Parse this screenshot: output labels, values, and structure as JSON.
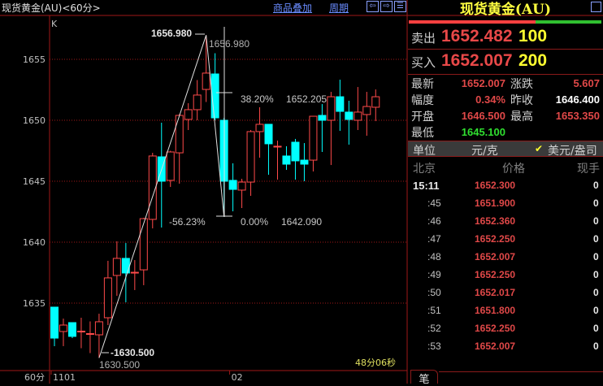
{
  "header": {
    "title": "现货黄金(AU)<60分>",
    "overlay_link": "商品叠加",
    "period_link": "周期",
    "buttons": [
      "left-arrow",
      "right-arrow",
      "layout"
    ]
  },
  "chart_data": {
    "type": "candlestick",
    "indicator_label": "K",
    "period_label": "60分",
    "y_ticks": [
      1655,
      1650,
      1645,
      1640,
      1635
    ],
    "ylim": [
      1628.9,
      1658.4
    ],
    "x_tick_labels": [
      {
        "label": "1101",
        "index": 0
      },
      {
        "label": "02",
        "index": 20
      }
    ],
    "timer": "48分06秒",
    "colors": {
      "up": "#ff4a4a",
      "down": "#00ffff",
      "grid": "#a01818"
    },
    "candles": [
      [
        1634.67,
        1634.67,
        1631.47,
        1632.13
      ],
      [
        1632.67,
        1633.73,
        1631.47,
        1633.2
      ],
      [
        1633.4,
        1633.4,
        1632.13,
        1632.27
      ],
      [
        1632.7,
        1633.8,
        1631.3,
        1632.7
      ],
      [
        1632.5,
        1633.5,
        1630.9,
        1632.5
      ],
      [
        1632.4,
        1634.13,
        1630.5,
        1633.47
      ],
      [
        1633.8,
        1638.47,
        1633.2,
        1637.07
      ],
      [
        1637.27,
        1640.07,
        1635.6,
        1638.67
      ],
      [
        1638.67,
        1639.93,
        1635.07,
        1637.47
      ],
      [
        1637.53,
        1638.53,
        1636.07,
        1637.53
      ],
      [
        1637.73,
        1642.0,
        1636.47,
        1641.93
      ],
      [
        1641.87,
        1647.33,
        1641.13,
        1647.07
      ],
      [
        1647.0,
        1649.8,
        1641.2,
        1645.0
      ],
      [
        1645.07,
        1647.5,
        1644.53,
        1647.4
      ],
      [
        1647.33,
        1650.5,
        1644.8,
        1650.4
      ],
      [
        1650.07,
        1651.4,
        1649.2,
        1650.87
      ],
      [
        1650.87,
        1653.3,
        1650.0,
        1652.07
      ],
      [
        1652.53,
        1656.98,
        1651.5,
        1653.87
      ],
      [
        1653.8,
        1655.5,
        1650.0,
        1650.2
      ],
      [
        1650.0,
        1650.2,
        1642.09,
        1645.0
      ],
      [
        1645.07,
        1646.47,
        1642.53,
        1644.33
      ],
      [
        1644.27,
        1645.2,
        1642.8,
        1644.93
      ],
      [
        1644.93,
        1649.2,
        1643.8,
        1649.07
      ],
      [
        1649.07,
        1651.07,
        1646.93,
        1649.67
      ],
      [
        1649.67,
        1649.67,
        1645.53,
        1648.07
      ],
      [
        1647.87,
        1648.33,
        1645.13,
        1647.87
      ],
      [
        1647.07,
        1647.87,
        1645.93,
        1646.4
      ],
      [
        1648.2,
        1648.47,
        1645.13,
        1646.67
      ],
      [
        1646.73,
        1648.13,
        1645.0,
        1646.4
      ],
      [
        1646.73,
        1650.33,
        1645.8,
        1650.33
      ],
      [
        1650.4,
        1651.33,
        1647.4,
        1650.0
      ],
      [
        1650.0,
        1652.33,
        1646.33,
        1651.93
      ],
      [
        1651.93,
        1653.33,
        1649.13,
        1650.73
      ],
      [
        1650.67,
        1651.6,
        1648.0,
        1650.07
      ],
      [
        1650.0,
        1652.73,
        1649.2,
        1650.67
      ],
      [
        1650.47,
        1652.33,
        1648.73,
        1651.13
      ],
      [
        1651.07,
        1652.53,
        1649.93,
        1651.93
      ]
    ],
    "candle_fields": [
      "open",
      "high",
      "low",
      "close"
    ],
    "annotations": {
      "high_marker": "1656.980",
      "high_value": "1656.980",
      "low_marker": "-1630.500",
      "low_value": "1630.500",
      "fib_382_label": "38.20%",
      "fib_382_value": "1652.205",
      "fib_neg_label": "-56.23%",
      "fib_0_label": "0.00%",
      "fib_0_value": "1642.090"
    }
  },
  "quote": {
    "title": "现货黄金(AU)",
    "buy_sell_ratio": 0.66,
    "sell_label": "卖出",
    "sell_price": "1652.482",
    "sell_vol": "100",
    "buy_label": "买入",
    "buy_price": "1652.007",
    "buy_vol": "200",
    "stats": [
      {
        "label": "最新",
        "value": "1652.007",
        "color": "#e04848"
      },
      {
        "label": "涨跌",
        "value": "5.607",
        "color": "#e04848"
      },
      {
        "label": "幅度",
        "value": "0.34%",
        "color": "#e04848"
      },
      {
        "label": "昨收",
        "value": "1646.400",
        "color": "#ffffff"
      },
      {
        "label": "开盘",
        "value": "1646.500",
        "color": "#e04848"
      },
      {
        "label": "最高",
        "value": "1653.350",
        "color": "#e04848"
      },
      {
        "label": "最低",
        "value": "1645.100",
        "color": "#30e030"
      }
    ],
    "unit_label": "单位",
    "unit_cny": "元/克",
    "unit_usd": "美元/盎司",
    "unit_usd_checked": true,
    "ticks_headers": [
      "北京",
      "价格",
      "现手"
    ],
    "ticks": [
      {
        "time": "15:11",
        "price": "1652.300",
        "vol": "0"
      },
      {
        "time": ":45",
        "price": "1651.900",
        "vol": "0"
      },
      {
        "time": ":46",
        "price": "1652.360",
        "vol": "0"
      },
      {
        "time": ":47",
        "price": "1652.250",
        "vol": "0"
      },
      {
        "time": ":48",
        "price": "1652.007",
        "vol": "0"
      },
      {
        "time": ":49",
        "price": "1652.250",
        "vol": "0"
      },
      {
        "time": ":50",
        "price": "1652.017",
        "vol": "0"
      },
      {
        "time": ":51",
        "price": "1651.800",
        "vol": "0"
      },
      {
        "time": ":52",
        "price": "1652.250",
        "vol": "0"
      },
      {
        "time": ":53",
        "price": "1652.007",
        "vol": "0"
      }
    ],
    "bottom_tab": "笔"
  }
}
